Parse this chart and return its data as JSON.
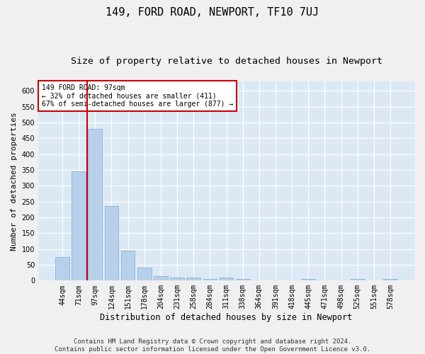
{
  "title": "149, FORD ROAD, NEWPORT, TF10 7UJ",
  "subtitle": "Size of property relative to detached houses in Newport",
  "xlabel": "Distribution of detached houses by size in Newport",
  "ylabel": "Number of detached properties",
  "categories": [
    "44sqm",
    "71sqm",
    "97sqm",
    "124sqm",
    "151sqm",
    "178sqm",
    "204sqm",
    "231sqm",
    "258sqm",
    "284sqm",
    "311sqm",
    "338sqm",
    "364sqm",
    "391sqm",
    "418sqm",
    "445sqm",
    "471sqm",
    "498sqm",
    "525sqm",
    "551sqm",
    "578sqm"
  ],
  "values": [
    75,
    345,
    480,
    235,
    95,
    40,
    15,
    10,
    10,
    5,
    10,
    5,
    0,
    0,
    0,
    5,
    0,
    0,
    5,
    0,
    5
  ],
  "bar_color": "#b8d0ea",
  "bar_edge_color": "#7aafd6",
  "red_line_index": 2,
  "red_line_color": "#cc0000",
  "ylim": [
    0,
    630
  ],
  "yticks": [
    0,
    50,
    100,
    150,
    200,
    250,
    300,
    350,
    400,
    450,
    500,
    550,
    600
  ],
  "annotation_text": "149 FORD ROAD: 97sqm\n← 32% of detached houses are smaller (411)\n67% of semi-detached houses are larger (877) →",
  "annotation_box_color": "#ffffff",
  "annotation_box_edge": "#cc0000",
  "footer_line1": "Contains HM Land Registry data © Crown copyright and database right 2024.",
  "footer_line2": "Contains public sector information licensed under the Open Government Licence v3.0.",
  "fig_bg_color": "#f0f0f0",
  "plot_bg_color": "#dce9f5",
  "grid_color": "#ffffff",
  "title_fontsize": 11,
  "subtitle_fontsize": 9.5,
  "ylabel_fontsize": 8,
  "xlabel_fontsize": 8.5,
  "tick_fontsize": 7,
  "annotation_fontsize": 7,
  "footer_fontsize": 6.5
}
